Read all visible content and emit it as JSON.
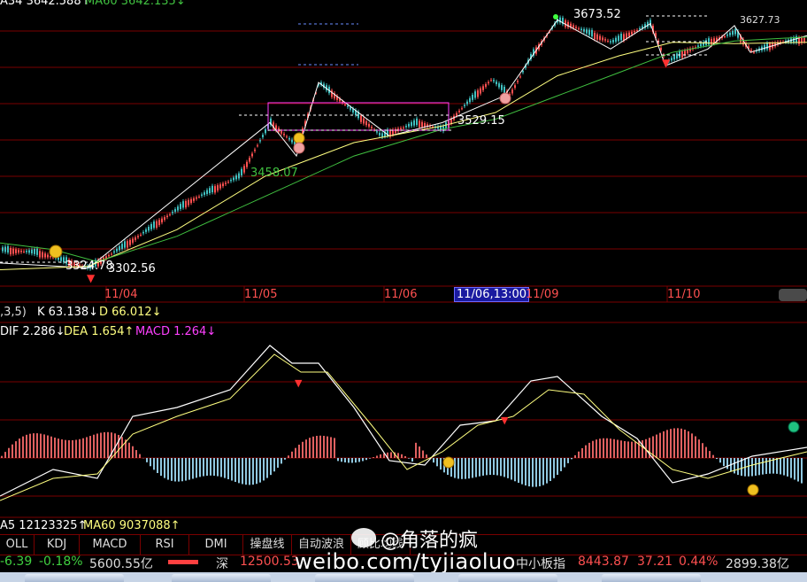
{
  "header": {
    "ma34_label": "A34 3642.588↑",
    "ma60_label": "MA60 3642.135↓"
  },
  "price_labels": {
    "high_main": "3673.52",
    "top_right": "3627.73",
    "mid_box": "3529.15",
    "green_mid": "3458.07",
    "low_left": "3324.78",
    "low_main": "3302.56"
  },
  "x_axis": {
    "ticks": [
      "11/04",
      "11/05",
      "11/06",
      "11/06,13:00",
      "11/09",
      "11/10"
    ],
    "highlight": "11/06,13:00"
  },
  "kdj": {
    "params": ",3,5)",
    "k_label": "K 63.138↓",
    "d_label": "D 66.012↓"
  },
  "macd": {
    "dif_label": "DIF 2.286↓",
    "dea_label": "DEA 1.654↑",
    "macd_label": "MACD 1.264↓"
  },
  "volume": {
    "ma5_label": "A5 12123325↑",
    "ma60_label": "MA60 9037088↑"
  },
  "tabs": [
    "OLL",
    "KDJ",
    "MACD",
    "RSI",
    "DMI",
    "操盘线",
    "自动波浪",
    "顾比均线"
  ],
  "status_bar": {
    "change": "-6.39",
    "change_pct": "-0.18%",
    "amount": "5600.55亿",
    "shen_label": "深",
    "shen_value": "12500.53",
    "zxb_label": "中小板指",
    "zxb_value": "8443.87",
    "zxb_change": "37.21",
    "zxb_pct": "0.44%",
    "zxb_amount": "2899.38亿"
  },
  "watermark": {
    "handle": "@角落的疯",
    "url": "weibo.com/tyjiaoluo"
  },
  "colors": {
    "background": "#000000",
    "grid": "#7a0000",
    "up_candle": "#ff5050",
    "price_line": "#ffffff",
    "ma_yellow": "#ffff80",
    "ma_green": "#40c040",
    "dif": "#ffffff",
    "dea": "#ffff80",
    "macd_label": "#ff40ff",
    "hist_pos": "#e06060",
    "hist_neg": "#90c8e0",
    "box": "#ff40ff"
  },
  "chart_data": {
    "type": "line",
    "title": "",
    "x": [
      "11/04",
      "11/05",
      "11/06",
      "11/09",
      "11/10"
    ],
    "series": [
      {
        "values": [
          3302.56,
          3458.07,
          3529.15,
          3673.52,
          3627.73
        ]
      }
    ],
    "annotations": [
      "3673.52",
      "3627.73",
      "3529.15",
      "3458.07",
      "3324.78",
      "3302.56"
    ],
    "ylim": [
      3290,
      3690
    ],
    "macd": {
      "dif": 2.286,
      "dea": 1.654,
      "macd": 1.264
    },
    "kdj": {
      "k": 63.138,
      "d": 66.012
    },
    "volume_ma": {
      "ma5": 12123325,
      "ma60": 9037088
    }
  }
}
